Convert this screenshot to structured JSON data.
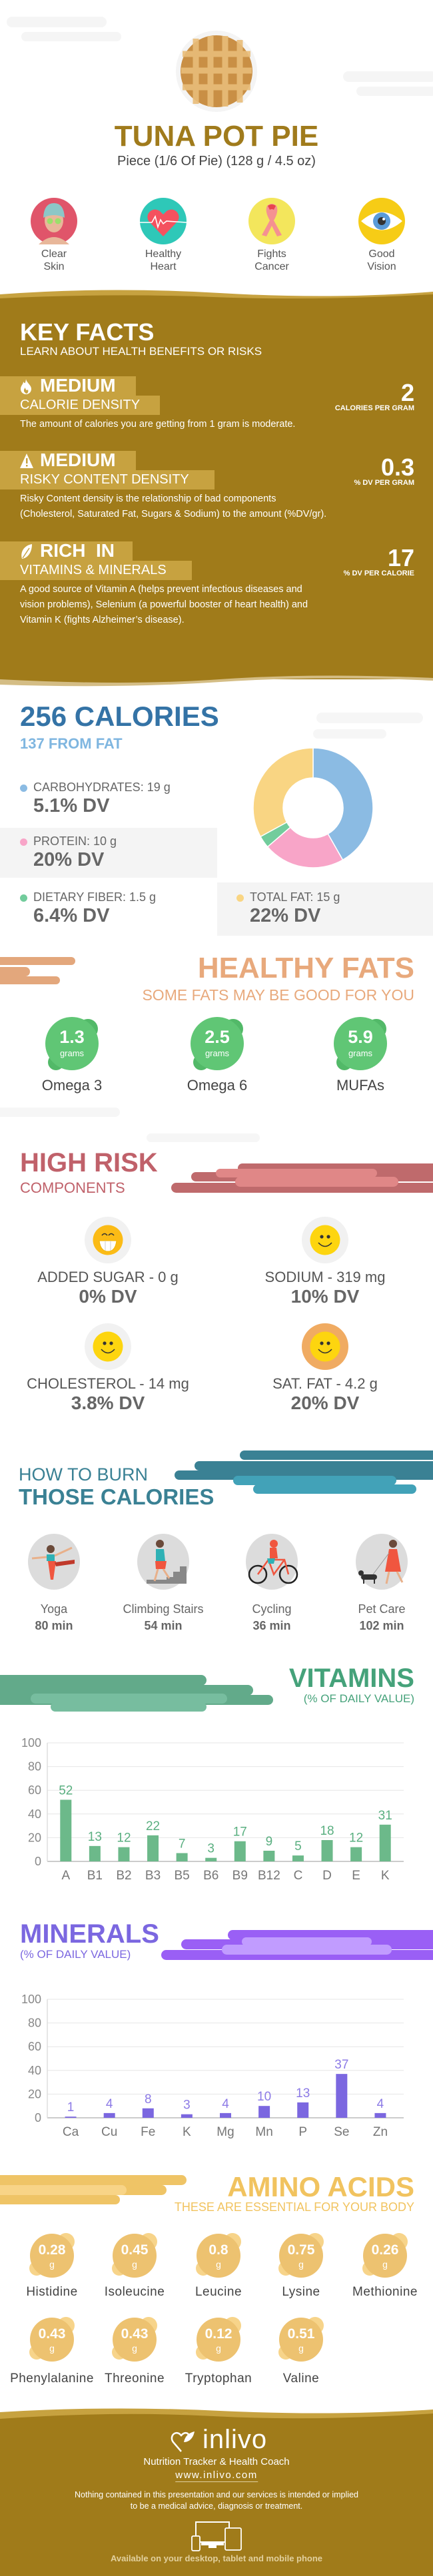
{
  "header": {
    "title": "TUNA POT PIE",
    "serving": "Piece (1/6 Of Pie) (128 g / 4.5 oz)",
    "benefits": [
      {
        "label1": "Clear",
        "label2": "Skin",
        "icon": "face-mask-icon",
        "color": "#e0556a"
      },
      {
        "label1": "Healthy",
        "label2": "Heart",
        "icon": "heart-pulse-icon",
        "color": "#2ec8b8"
      },
      {
        "label1": "Fights",
        "label2": "Cancer",
        "icon": "ribbon-icon",
        "color": "#f3e65c"
      },
      {
        "label1": "Good",
        "label2": "Vision",
        "icon": "eye-icon",
        "color": "#f6cc16"
      }
    ]
  },
  "key_facts": {
    "title": "KEY FACTS",
    "subtitle": "LEARN ABOUT HEALTH BENEFITS OR RISKS",
    "items": [
      {
        "icon": "flame-icon",
        "level": "MEDIUM",
        "label": "CALORIE DENSITY",
        "value": "2",
        "unit": "CALORIES PER GRAM",
        "desc": [
          "The amount of calories you are getting from 1 gram is moderate."
        ]
      },
      {
        "icon": "warning-icon",
        "level": "MEDIUM",
        "label": "RISKY CONTENT DENSITY",
        "value": "0.3",
        "unit": "% DV PER GRAM",
        "desc": [
          "Risky Content density is the relationship of bad components",
          "(Cholesterol, Saturated Fat, Sugars & Sodium) to the amount (%DV/gr)."
        ]
      },
      {
        "icon": "leaf-icon",
        "level": "RICH  IN",
        "label": "VITAMINS & MINERALS",
        "value": "17",
        "unit": "% DV PER CALORIE",
        "desc": [
          "A good source of Vitamin A (helps prevent infectious diseases and",
          "vision problems), Selenium (a powerful booster of heart health) and",
          "Vitamin K (fights Alzheimer’s disease)."
        ]
      }
    ]
  },
  "calories": {
    "title": "256 CALORIES",
    "from_fat": "137 FROM FAT",
    "macros": [
      {
        "label": "CARBOHYDRATES: 19 g",
        "dv": "5.1% DV",
        "grams": 19,
        "color": "#8bbbe3"
      },
      {
        "label": "PROTEIN: 10 g",
        "dv": "20% DV",
        "grams": 10,
        "color": "#f8a5c8"
      },
      {
        "label": "DIETARY FIBER: 1.5 g",
        "dv": "6.4% DV",
        "grams": 1.5,
        "color": "#72cc9c"
      },
      {
        "label": "TOTAL FAT: 15 g",
        "dv": "22% DV",
        "grams": 15,
        "color": "#f9d583"
      }
    ]
  },
  "healthy_fats": {
    "title": "HEALTHY FATS",
    "subtitle": "SOME FATS MAY BE GOOD FOR YOU",
    "unit": "grams",
    "items": [
      {
        "value": "1.3",
        "label": "Omega 3"
      },
      {
        "value": "2.5",
        "label": "Omega 6"
      },
      {
        "value": "5.9",
        "label": "MUFAs"
      }
    ]
  },
  "high_risk": {
    "title": "HIGH RISK",
    "subtitle": "COMPONENTS",
    "items": [
      {
        "label": "ADDED SUGAR - 0 g",
        "dv": "0% DV",
        "icon": "grinning-face-icon"
      },
      {
        "label": "SODIUM - 319 mg",
        "dv": "10% DV",
        "icon": "smiling-face-icon"
      },
      {
        "label": "CHOLESTEROL - 14 mg",
        "dv": "3.8% DV",
        "icon": "smiling-face-icon"
      },
      {
        "label": "SAT. FAT - 4.2 g",
        "dv": "20% DV",
        "icon": "smiling-face-icon"
      }
    ]
  },
  "burn": {
    "title1": "HOW TO BURN",
    "title2": "THOSE CALORIES",
    "items": [
      {
        "label": "Yoga",
        "time": "80 min",
        "icon": "yoga-icon"
      },
      {
        "label": "Climbing Stairs",
        "time": "54 min",
        "icon": "stairs-icon"
      },
      {
        "label": "Cycling",
        "time": "36 min",
        "icon": "bicycle-icon"
      },
      {
        "label": "Pet Care",
        "time": "102 min",
        "icon": "dog-walking-icon"
      }
    ]
  },
  "chart_data": [
    {
      "type": "bar",
      "title": "VITAMINS",
      "subtitle": "(% OF DAILY VALUE)",
      "categories": [
        "A",
        "B1",
        "B2",
        "B3",
        "B5",
        "B6",
        "B9",
        "B12",
        "C",
        "D",
        "E",
        "K"
      ],
      "values": [
        52,
        13,
        12,
        22,
        7,
        3,
        17,
        9,
        5,
        18,
        12,
        31
      ],
      "yticks": [
        "0",
        "20",
        "40",
        "60",
        "80",
        "100"
      ],
      "ylim": [
        0,
        100
      ],
      "grid": true,
      "color": "#6cb98a"
    },
    {
      "type": "bar",
      "title": "MINERALS",
      "subtitle": "(% OF DAILY VALUE)",
      "categories": [
        "Ca",
        "Cu",
        "Fe",
        "K",
        "Mg",
        "Mn",
        "P",
        "Se",
        "Zn"
      ],
      "values": [
        1,
        4,
        8,
        3,
        4,
        10,
        13,
        37,
        4
      ],
      "yticks": [
        "0",
        "20",
        "40",
        "60",
        "80",
        "100"
      ],
      "ylim": [
        0,
        100
      ],
      "grid": true,
      "color": "#7b67e0"
    }
  ],
  "amino": {
    "title": "AMINO ACIDS",
    "subtitle": "THESE ARE ESSENTIAL FOR YOUR BODY",
    "unit": "g",
    "items": [
      {
        "value": "0.28",
        "label": "Histidine"
      },
      {
        "value": "0.45",
        "label": "Isoleucine"
      },
      {
        "value": "0.8",
        "label": "Leucine"
      },
      {
        "value": "0.75",
        "label": "Lysine"
      },
      {
        "value": "0.26",
        "label": "Methionine"
      },
      {
        "value": "0.43",
        "label": "Phenylalanine"
      },
      {
        "value": "0.43",
        "label": "Threonine"
      },
      {
        "value": "0.12",
        "label": "Tryptophan"
      },
      {
        "value": "0.51",
        "label": "Valine"
      }
    ]
  },
  "footer": {
    "brand": "inlivo",
    "tagline": "Nutrition Tracker & Health Coach",
    "url": "www.inlivo.com",
    "disclaimer1": "Nothing contained in this presentation and our services is intended or implied",
    "disclaimer2": "to be a medical advice, diagnosis or treatment.",
    "available": "Available on your desktop, tablet and mobile phone"
  },
  "colors": {
    "brand_brown": "#a07b1a",
    "calories_blue": "#3473a6",
    "healthy_fats": "#e8a97c",
    "high_risk": "#c0616a",
    "burn_teal": "#3a8194",
    "vitamins": "#45a27a",
    "minerals": "#7b67e0",
    "amino": "#f1c35f"
  }
}
